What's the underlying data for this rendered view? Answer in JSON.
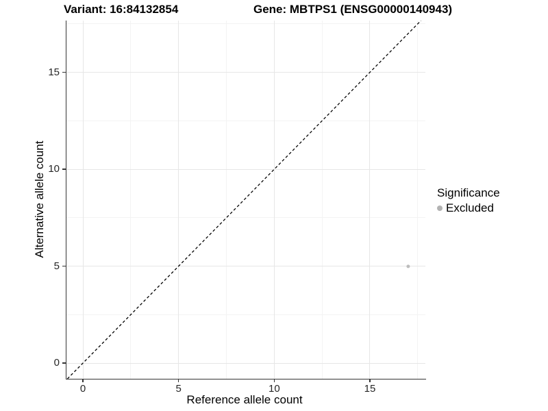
{
  "chart_data": {
    "type": "scatter",
    "titles": {
      "left": "Variant: 16:84132854",
      "right": "Gene: MBTPS1 (ENSG00000140943)"
    },
    "xlabel": "Reference allele count",
    "ylabel": "Alternative allele count",
    "xlim": [
      -0.86,
      17.9
    ],
    "ylim": [
      -0.81,
      17.67
    ],
    "x_ticks": [
      0,
      5,
      10,
      15
    ],
    "y_ticks": [
      0,
      5,
      10,
      15
    ],
    "x_minor_ticks": [
      2.5,
      7.5,
      12.5,
      17.5
    ],
    "y_minor_ticks": [
      2.5,
      7.5,
      12.5,
      17.5
    ],
    "grid": "major+minor",
    "series": [
      {
        "name": "Excluded",
        "color": "#bdbdbd",
        "point_radius": 2.6,
        "points": [
          {
            "x": 17,
            "y": 5
          }
        ]
      }
    ],
    "reference_line": {
      "kind": "identity",
      "style": "dashed",
      "color": "#000000"
    },
    "legend": {
      "title": "Significance",
      "position": "right",
      "items": [
        {
          "label": "Excluded",
          "color": "#b3b3b3"
        }
      ]
    }
  }
}
